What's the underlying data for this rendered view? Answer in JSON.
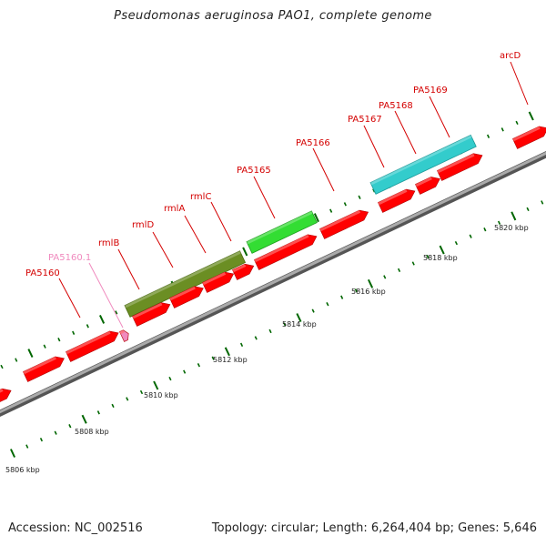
{
  "title": "Pseudomonas aeruginosa PAO1, complete genome",
  "colors": {
    "gene": "#ff0000",
    "pseudogene": "#f08abe",
    "rml_cluster": "#6b8e23",
    "pa5165": "#33dd33",
    "pa5167_69_cluster": "#33cccc",
    "tick": "#006600",
    "backbone": "#888888"
  },
  "genes": [
    {
      "name": "",
      "type": "cds"
    },
    {
      "name": "",
      "type": "cds"
    },
    {
      "name": "PA5160",
      "type": "cds"
    },
    {
      "name": "PA5160.1",
      "type": "pseudo"
    },
    {
      "name": "rmlB",
      "type": "cds"
    },
    {
      "name": "rmlD",
      "type": "cds"
    },
    {
      "name": "rmlA",
      "type": "cds"
    },
    {
      "name": "rmlC",
      "type": "cds"
    },
    {
      "name": "PA5165",
      "type": "cds"
    },
    {
      "name": "PA5166",
      "type": "cds"
    },
    {
      "name": "PA5167",
      "type": "cds"
    },
    {
      "name": "PA5168",
      "type": "cds"
    },
    {
      "name": "PA5169",
      "type": "cds"
    },
    {
      "name": "arcD",
      "type": "cds"
    }
  ],
  "clusters": [
    {
      "name": "rml-cluster"
    },
    {
      "name": "pa5165-cluster"
    },
    {
      "name": "pa5167-5169-cluster"
    }
  ],
  "kbp_labels": [
    "5806 kbp",
    "5808 kbp",
    "5810 kbp",
    "5812 kbp",
    "5814 kbp",
    "5816 kbp",
    "5818 kbp",
    "5820 kbp"
  ],
  "footer": {
    "accession": "Accession: NC_002516",
    "summary": "Topology: circular; Length: 6,264,404 bp; Genes: 5,646"
  }
}
